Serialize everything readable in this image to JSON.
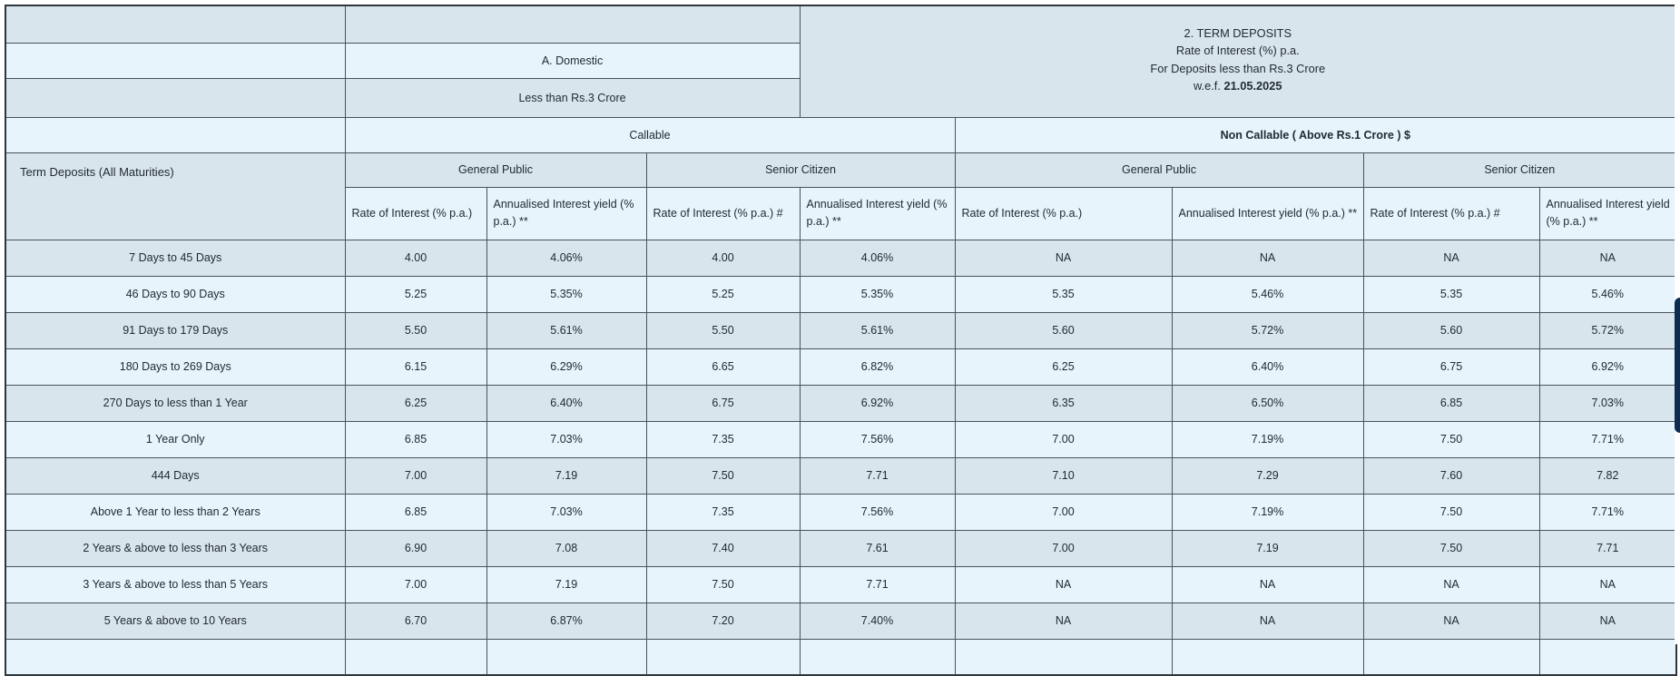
{
  "header": {
    "section_title": "2. TERM DEPOSITS",
    "subtitle_line1": "Rate of Interest (%) p.a.",
    "subtitle_line2": "For Deposits less than Rs.3 Crore",
    "wef_prefix": "w.e.f.",
    "wef_date": "21.05.2025",
    "domestic": "A. Domestic",
    "deposit_band": "Less than Rs.3 Crore",
    "callable": "Callable",
    "non_callable": "Non Callable ( Above Rs.1 Crore ) $",
    "maturities_header": "Term Deposits (All Maturities)"
  },
  "groups": [
    "General Public",
    "Senior Citizen",
    "General Public",
    "Senior Citizen"
  ],
  "col_headers": [
    "Rate of Interest (% p.a.)",
    "Annualised Interest yield (% p.a.) **",
    "Rate of Interest (% p.a.) #",
    "Annualised Interest yield (% p.a.) **",
    "Rate of Interest (% p.a.)",
    "Annualised Interest yield (% p.a.) **",
    "Rate of Interest (% p.a.) #",
    "Annualised Interest yield (% p.a.) **"
  ],
  "rows": [
    {
      "label": "7 Days to 45 Days",
      "values": [
        "4.00",
        "4.06%",
        "4.00",
        "4.06%",
        "NA",
        "NA",
        "NA",
        "NA"
      ]
    },
    {
      "label": "46 Days to 90 Days",
      "values": [
        "5.25",
        "5.35%",
        "5.25",
        "5.35%",
        "5.35",
        "5.46%",
        "5.35",
        "5.46%"
      ]
    },
    {
      "label": "91 Days to 179 Days",
      "values": [
        "5.50",
        "5.61%",
        "5.50",
        "5.61%",
        "5.60",
        "5.72%",
        "5.60",
        "5.72%"
      ]
    },
    {
      "label": "180 Days to 269 Days",
      "values": [
        "6.15",
        "6.29%",
        "6.65",
        "6.82%",
        "6.25",
        "6.40%",
        "6.75",
        "6.92%"
      ]
    },
    {
      "label": "270 Days to less than 1 Year",
      "values": [
        "6.25",
        "6.40%",
        "6.75",
        "6.92%",
        "6.35",
        "6.50%",
        "6.85",
        "7.03%"
      ]
    },
    {
      "label": "1 Year Only",
      "values": [
        "6.85",
        "7.03%",
        "7.35",
        "7.56%",
        "7.00",
        "7.19%",
        "7.50",
        "7.71%"
      ]
    },
    {
      "label": "444 Days",
      "values": [
        "7.00",
        "7.19",
        "7.50",
        "7.71",
        "7.10",
        "7.29",
        "7.60",
        "7.82"
      ]
    },
    {
      "label": "Above 1 Year to less than 2 Years",
      "values": [
        "6.85",
        "7.03%",
        "7.35",
        "7.56%",
        "7.00",
        "7.19%",
        "7.50",
        "7.71%"
      ]
    },
    {
      "label": "2 Years & above to less than 3 Years",
      "values": [
        "6.90",
        "7.08",
        "7.40",
        "7.61",
        "7.00",
        "7.19",
        "7.50",
        "7.71"
      ]
    },
    {
      "label": "3 Years & above to less than 5 Years",
      "values": [
        "7.00",
        "7.19",
        "7.50",
        "7.71",
        "NA",
        "NA",
        "NA",
        "NA"
      ]
    },
    {
      "label": "5 Years & above to 10 Years",
      "values": [
        "6.70",
        "6.87%",
        "7.20",
        "7.40%",
        "NA",
        "NA",
        "NA",
        "NA"
      ]
    }
  ],
  "colors": {
    "row-dark": "#d9e5ed",
    "row-light": "#e7f4fc",
    "grid-border": "#49525b",
    "outer-border": "#2e363d",
    "text": "#222a33",
    "scrollbar-thumb": "#0d2c4e",
    "page-bg": "#ffffff"
  }
}
